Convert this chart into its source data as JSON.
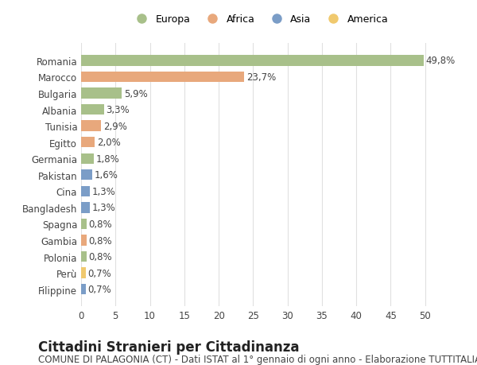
{
  "categories": [
    "Romania",
    "Marocco",
    "Bulgaria",
    "Albania",
    "Tunisia",
    "Egitto",
    "Germania",
    "Pakistan",
    "Cina",
    "Bangladesh",
    "Spagna",
    "Gambia",
    "Polonia",
    "Perù",
    "Filippine"
  ],
  "values": [
    49.8,
    23.7,
    5.9,
    3.3,
    2.9,
    2.0,
    1.8,
    1.6,
    1.3,
    1.3,
    0.8,
    0.8,
    0.8,
    0.7,
    0.7
  ],
  "labels": [
    "49,8%",
    "23,7%",
    "5,9%",
    "3,3%",
    "2,9%",
    "2,0%",
    "1,8%",
    "1,6%",
    "1,3%",
    "1,3%",
    "0,8%",
    "0,8%",
    "0,8%",
    "0,7%",
    "0,7%"
  ],
  "continents": [
    "Europa",
    "Africa",
    "Europa",
    "Europa",
    "Africa",
    "Africa",
    "Europa",
    "Asia",
    "Asia",
    "Asia",
    "Europa",
    "Africa",
    "Europa",
    "America",
    "Asia"
  ],
  "continent_colors": {
    "Europa": "#a8c08a",
    "Africa": "#e8a87c",
    "Asia": "#7b9dc7",
    "America": "#f0c96e"
  },
  "legend_order": [
    "Europa",
    "Africa",
    "Asia",
    "America"
  ],
  "bg_color": "#ffffff",
  "grid_color": "#e0e0e0",
  "bar_height": 0.65,
  "xlim": [
    0,
    52
  ],
  "xticks": [
    0,
    5,
    10,
    15,
    20,
    25,
    30,
    35,
    40,
    45,
    50
  ],
  "title": "Cittadini Stranieri per Cittadinanza",
  "subtitle": "COMUNE DI PALAGONIA (CT) - Dati ISTAT al 1° gennaio di ogni anno - Elaborazione TUTTITALIA.IT",
  "title_fontsize": 12,
  "subtitle_fontsize": 8.5,
  "label_fontsize": 8.5,
  "tick_fontsize": 8.5,
  "legend_fontsize": 9
}
